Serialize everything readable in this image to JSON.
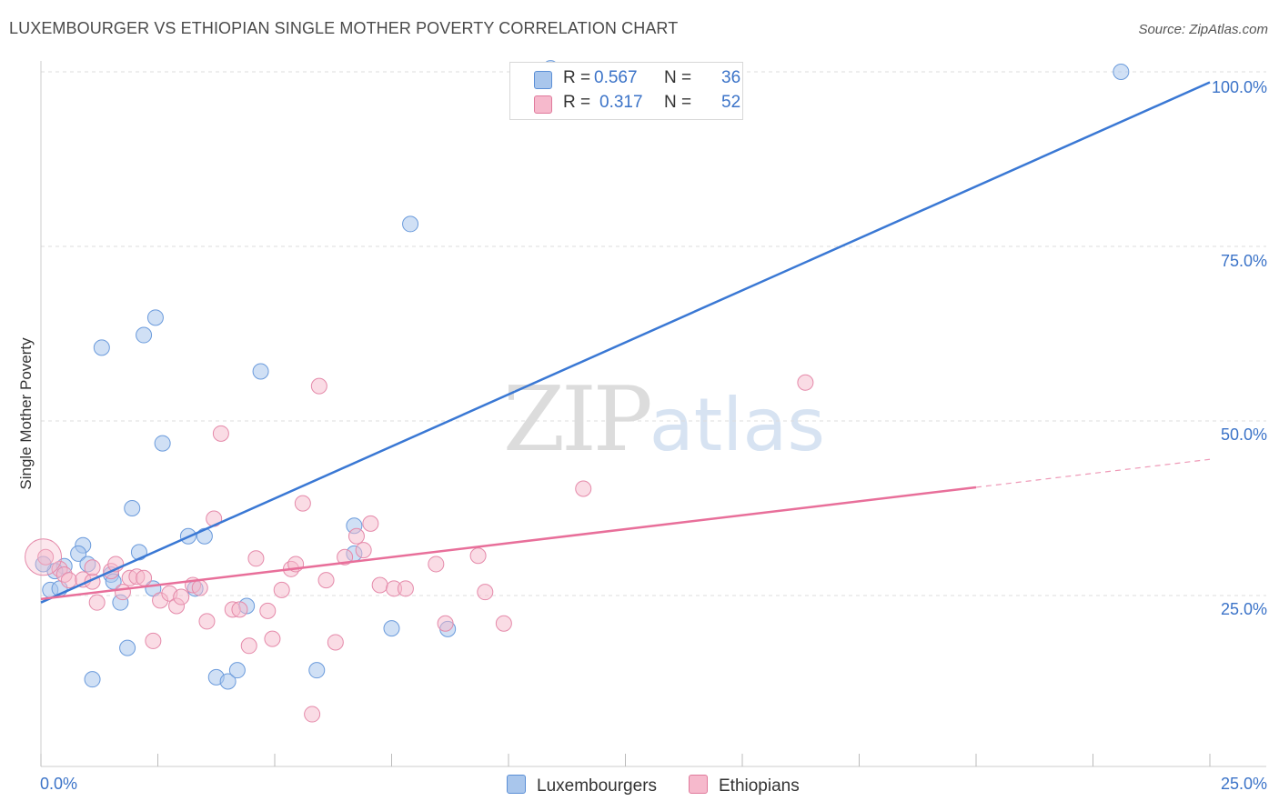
{
  "header": {
    "title": "LUXEMBOURGER VS ETHIOPIAN SINGLE MOTHER POVERTY CORRELATION CHART",
    "source": "Source: ZipAtlas.com"
  },
  "watermark": {
    "zip": "ZIP",
    "atlas": "atlas"
  },
  "legend": {
    "r_label": "R =",
    "n_label": "N =",
    "series": [
      {
        "name": "Luxembourgers",
        "r": "0.567",
        "n": "36",
        "fill": "#a9c6ec",
        "stroke": "#5b8fd6"
      },
      {
        "name": "Ethiopians",
        "r": "0.317",
        "n": "52",
        "fill": "#f6b9cc",
        "stroke": "#e07a9c"
      }
    ]
  },
  "chart_data": {
    "type": "scatter",
    "title": "LUXEMBOURGER VS ETHIOPIAN SINGLE MOTHER POVERTY CORRELATION CHART",
    "xlabel": "",
    "ylabel": "Single Mother Poverty",
    "xlim": [
      0,
      25
    ],
    "ylim": [
      0,
      102
    ],
    "x_tick_labels": [
      "0.0%",
      "25.0%"
    ],
    "y_ticks": [
      25,
      50,
      75,
      100
    ],
    "y_tick_labels": [
      "25.0%",
      "50.0%",
      "75.0%",
      "100.0%"
    ],
    "grid": true,
    "series": [
      {
        "name": "Luxembourgers",
        "color": "#3a78d4",
        "points": [
          [
            0.2,
            25.8
          ],
          [
            0.5,
            29.2
          ],
          [
            0.3,
            28.5
          ],
          [
            0.9,
            32.2
          ],
          [
            0.8,
            31.0
          ],
          [
            1.0,
            29.5
          ],
          [
            0.4,
            26.0
          ],
          [
            1.5,
            28.0
          ],
          [
            1.55,
            27.0
          ],
          [
            1.7,
            24.0
          ],
          [
            1.3,
            60.5
          ],
          [
            2.2,
            62.3
          ],
          [
            2.45,
            64.8
          ],
          [
            2.6,
            46.8
          ],
          [
            1.95,
            37.5
          ],
          [
            2.1,
            31.2
          ],
          [
            2.4,
            26.0
          ],
          [
            3.15,
            33.5
          ],
          [
            3.5,
            33.5
          ],
          [
            3.3,
            26.0
          ],
          [
            1.1,
            13.0
          ],
          [
            1.85,
            17.5
          ],
          [
            3.75,
            13.3
          ],
          [
            4.0,
            12.7
          ],
          [
            4.2,
            14.3
          ],
          [
            4.4,
            23.5
          ],
          [
            4.7,
            57.1
          ],
          [
            7.9,
            78.2
          ],
          [
            6.7,
            35.0
          ],
          [
            6.7,
            31.0
          ],
          [
            5.9,
            14.3
          ],
          [
            7.5,
            20.3
          ],
          [
            8.7,
            20.2
          ],
          [
            10.9,
            100.5
          ],
          [
            23.1,
            100.0
          ],
          [
            0.05,
            29.5
          ]
        ],
        "trend": {
          "x": [
            0.0,
            25.0
          ],
          "y": [
            24.0,
            98.5
          ]
        }
      },
      {
        "name": "Ethiopians",
        "color": "#e86f9a",
        "points": [
          [
            0.1,
            30.5
          ],
          [
            0.4,
            28.8
          ],
          [
            0.5,
            28.0
          ],
          [
            0.6,
            27.2
          ],
          [
            0.9,
            27.3
          ],
          [
            1.1,
            27.0
          ],
          [
            1.1,
            29.0
          ],
          [
            1.2,
            24.0
          ],
          [
            1.5,
            28.5
          ],
          [
            1.6,
            29.5
          ],
          [
            1.75,
            25.5
          ],
          [
            1.9,
            27.5
          ],
          [
            2.05,
            27.7
          ],
          [
            2.2,
            27.5
          ],
          [
            2.4,
            18.5
          ],
          [
            2.55,
            24.3
          ],
          [
            2.75,
            25.3
          ],
          [
            2.9,
            23.5
          ],
          [
            3.0,
            24.8
          ],
          [
            3.25,
            26.5
          ],
          [
            3.4,
            26.1
          ],
          [
            3.55,
            21.3
          ],
          [
            3.7,
            36.0
          ],
          [
            3.85,
            48.2
          ],
          [
            4.1,
            23.0
          ],
          [
            4.25,
            23.0
          ],
          [
            4.45,
            17.8
          ],
          [
            4.6,
            30.3
          ],
          [
            4.85,
            22.8
          ],
          [
            4.95,
            18.8
          ],
          [
            5.15,
            25.8
          ],
          [
            5.35,
            28.8
          ],
          [
            5.45,
            29.5
          ],
          [
            5.6,
            38.2
          ],
          [
            5.8,
            8.0
          ],
          [
            5.95,
            55.0
          ],
          [
            6.1,
            27.2
          ],
          [
            6.3,
            18.3
          ],
          [
            6.5,
            30.5
          ],
          [
            6.75,
            33.5
          ],
          [
            6.9,
            31.5
          ],
          [
            7.05,
            35.3
          ],
          [
            7.25,
            26.5
          ],
          [
            7.55,
            26.0
          ],
          [
            7.8,
            26.0
          ],
          [
            8.45,
            29.5
          ],
          [
            8.65,
            21.0
          ],
          [
            9.35,
            30.7
          ],
          [
            9.5,
            25.5
          ],
          [
            9.9,
            21.0
          ],
          [
            11.6,
            40.3
          ],
          [
            16.35,
            55.5
          ]
        ],
        "trend": {
          "x": [
            0.0,
            20.0
          ],
          "y": [
            24.5,
            40.5
          ]
        },
        "trend_dashed": {
          "x": [
            20.0,
            25.0
          ],
          "y": [
            40.5,
            44.5
          ]
        }
      }
    ]
  }
}
